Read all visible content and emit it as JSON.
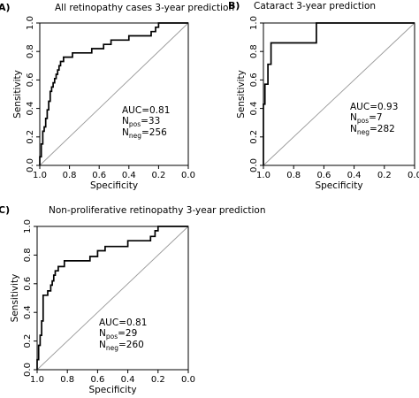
{
  "panels": [
    {
      "panel_label": "A)",
      "stats": {
        "auc": "AUC=0.81",
        "n_pos_prefix": "N",
        "n_pos_sub": "pos",
        "n_pos_val": "=33",
        "n_neg_prefix": "N",
        "n_neg_sub": "neg",
        "n_neg_val": "=256"
      }
    },
    {
      "panel_label": "B)",
      "stats": {
        "auc": "AUC=0.93",
        "n_pos_prefix": "N",
        "n_pos_sub": "pos",
        "n_pos_val": "=7",
        "n_neg_prefix": "N",
        "n_neg_sub": "neg",
        "n_neg_val": "=282"
      }
    },
    {
      "panel_label": "C)",
      "stats": {
        "auc": "AUC=0.81",
        "n_pos_prefix": "N",
        "n_pos_sub": "pos",
        "n_pos_val": "=29",
        "n_neg_prefix": "N",
        "n_neg_sub": "neg",
        "n_neg_val": "=260"
      }
    }
  ],
  "chart_data": [
    {
      "type": "line",
      "title": "All retinopathy cases 3-year prediction",
      "xlabel": "Specificity",
      "ylabel": "Sensitivity",
      "xlim": [
        1.0,
        0.0
      ],
      "ylim": [
        0.0,
        1.0
      ],
      "x_reversed": true,
      "x_ticks": [
        "1.0",
        "0.8",
        "0.6",
        "0.4",
        "0.2",
        "0.0"
      ],
      "y_ticks": [
        "0.0",
        "0.2",
        "0.4",
        "0.6",
        "0.8",
        "1.0"
      ],
      "reference_line": [
        [
          1.0,
          0.0
        ],
        [
          0.0,
          1.0
        ]
      ],
      "series": [
        {
          "specificity": [
            1.0,
            1.0,
            0.99,
            0.99,
            0.98,
            0.98,
            0.97,
            0.97,
            0.96,
            0.96,
            0.95,
            0.95,
            0.94,
            0.94,
            0.93,
            0.93,
            0.92,
            0.92,
            0.91,
            0.91,
            0.9,
            0.9,
            0.89,
            0.89,
            0.88,
            0.88,
            0.87,
            0.87,
            0.86,
            0.86,
            0.84,
            0.84,
            0.82,
            0.82,
            0.78,
            0.78,
            0.65,
            0.65,
            0.6,
            0.6,
            0.57,
            0.57,
            0.55,
            0.55,
            0.52,
            0.52,
            0.5,
            0.5,
            0.4,
            0.4,
            0.25,
            0.25,
            0.22,
            0.22,
            0.2,
            0.2,
            0.0
          ],
          "sensitivity": [
            0.0,
            0.06,
            0.06,
            0.15,
            0.15,
            0.24,
            0.24,
            0.27,
            0.27,
            0.33,
            0.33,
            0.39,
            0.39,
            0.45,
            0.45,
            0.52,
            0.52,
            0.55,
            0.55,
            0.58,
            0.58,
            0.61,
            0.61,
            0.64,
            0.64,
            0.67,
            0.67,
            0.7,
            0.7,
            0.73,
            0.73,
            0.76,
            0.76,
            0.76,
            0.76,
            0.79,
            0.79,
            0.82,
            0.82,
            0.82,
            0.82,
            0.85,
            0.85,
            0.85,
            0.85,
            0.88,
            0.88,
            0.88,
            0.88,
            0.91,
            0.91,
            0.94,
            0.94,
            0.97,
            0.97,
            1.0,
            1.0
          ]
        }
      ]
    },
    {
      "type": "line",
      "title": "Cataract 3-year prediction",
      "xlabel": "Specificity",
      "ylabel": "Sensitivity",
      "xlim": [
        1.0,
        0.0
      ],
      "ylim": [
        0.0,
        1.0
      ],
      "x_reversed": true,
      "x_ticks": [
        "1.0",
        "0.8",
        "0.6",
        "0.4",
        "0.2",
        "0.0"
      ],
      "y_ticks": [
        "0.0",
        "0.2",
        "0.4",
        "0.6",
        "0.8",
        "1.0"
      ],
      "reference_line": [
        [
          1.0,
          0.0
        ],
        [
          0.0,
          1.0
        ]
      ],
      "series": [
        {
          "specificity": [
            1.0,
            1.0,
            0.99,
            0.99,
            0.97,
            0.97,
            0.95,
            0.95,
            0.65,
            0.65,
            0.0
          ],
          "sensitivity": [
            0.0,
            0.43,
            0.43,
            0.57,
            0.57,
            0.71,
            0.71,
            0.86,
            0.86,
            1.0,
            1.0
          ]
        }
      ]
    },
    {
      "type": "line",
      "title": "Non-proliferative retinopathy 3-year prediction",
      "xlabel": "Specificity",
      "ylabel": "Sensitivity",
      "xlim": [
        1.0,
        0.0
      ],
      "ylim": [
        0.0,
        1.0
      ],
      "x_reversed": true,
      "x_ticks": [
        "1.0",
        "0.8",
        "0.6",
        "0.4",
        "0.2",
        "0.0"
      ],
      "y_ticks": [
        "0.0",
        "0.2",
        "0.4",
        "0.6",
        "0.8",
        "1.0"
      ],
      "reference_line": [
        [
          1.0,
          0.0
        ],
        [
          0.0,
          1.0
        ]
      ],
      "series": [
        {
          "specificity": [
            1.0,
            1.0,
            0.99,
            0.99,
            0.98,
            0.98,
            0.97,
            0.97,
            0.96,
            0.96,
            0.93,
            0.93,
            0.91,
            0.91,
            0.9,
            0.9,
            0.89,
            0.89,
            0.88,
            0.88,
            0.86,
            0.86,
            0.85,
            0.85,
            0.82,
            0.82,
            0.8,
            0.8,
            0.65,
            0.65,
            0.62,
            0.62,
            0.6,
            0.6,
            0.55,
            0.55,
            0.5,
            0.5,
            0.4,
            0.4,
            0.25,
            0.25,
            0.22,
            0.22,
            0.2,
            0.2,
            0.0
          ],
          "sensitivity": [
            0.0,
            0.07,
            0.07,
            0.17,
            0.17,
            0.24,
            0.24,
            0.34,
            0.34,
            0.52,
            0.52,
            0.55,
            0.55,
            0.59,
            0.59,
            0.62,
            0.62,
            0.66,
            0.66,
            0.69,
            0.69,
            0.72,
            0.72,
            0.72,
            0.72,
            0.76,
            0.76,
            0.76,
            0.76,
            0.79,
            0.79,
            0.79,
            0.79,
            0.83,
            0.83,
            0.86,
            0.86,
            0.86,
            0.86,
            0.9,
            0.9,
            0.93,
            0.93,
            0.97,
            0.97,
            1.0,
            1.0
          ]
        }
      ]
    }
  ]
}
